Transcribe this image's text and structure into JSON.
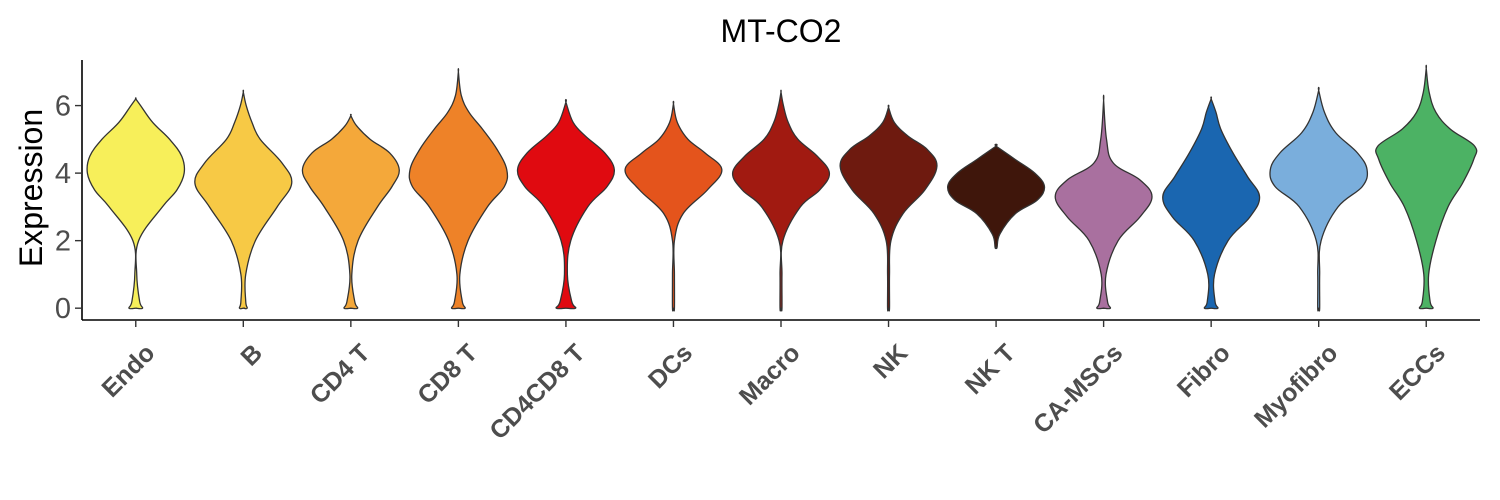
{
  "chart_data": {
    "type": "violin",
    "title": "MT-CO2",
    "xlabel": "",
    "ylabel": "Expression",
    "ylim": [
      -0.35,
      7.35
    ],
    "yticks": [
      0,
      2,
      4,
      6
    ],
    "grid": false,
    "legend": "none",
    "categories": [
      "Endo",
      "B",
      "CD4 T",
      "CD8 T",
      "CD4CD8 T",
      "DCs",
      "Macro",
      "NK",
      "NK T",
      "CA-MSCs",
      "Fibro",
      "Myofibro",
      "ECCs"
    ],
    "colors": [
      "#F7EF5A",
      "#F7C945",
      "#F4A83A",
      "#EE8228",
      "#E00A10",
      "#E4541C",
      "#A11A11",
      "#6E1A0F",
      "#3F160B",
      "#A9709F",
      "#1A66B0",
      "#7AAEDC",
      "#4CB264"
    ],
    "series": [
      {
        "category": "Endo",
        "min": 0,
        "max": 6.2,
        "profile": [
          [
            0,
            0.14
          ],
          [
            0.2,
            0.08
          ],
          [
            1,
            0.02
          ],
          [
            2,
            0.06
          ],
          [
            3,
            0.55
          ],
          [
            3.5,
            0.85
          ],
          [
            4,
            1.0
          ],
          [
            4.5,
            0.95
          ],
          [
            5,
            0.7
          ],
          [
            5.5,
            0.35
          ],
          [
            6,
            0.1
          ],
          [
            6.2,
            0
          ]
        ]
      },
      {
        "category": "B",
        "min": 0,
        "max": 6.4,
        "profile": [
          [
            0,
            0.08
          ],
          [
            0.2,
            0.05
          ],
          [
            1,
            0.05
          ],
          [
            2,
            0.25
          ],
          [
            3,
            0.7
          ],
          [
            3.7,
            1.0
          ],
          [
            4.3,
            0.8
          ],
          [
            5,
            0.35
          ],
          [
            5.5,
            0.18
          ],
          [
            6,
            0.06
          ],
          [
            6.4,
            0
          ]
        ]
      },
      {
        "category": "CD4 T",
        "min": 0,
        "max": 5.7,
        "profile": [
          [
            0,
            0.14
          ],
          [
            0.2,
            0.08
          ],
          [
            1,
            0.02
          ],
          [
            2,
            0.15
          ],
          [
            3,
            0.55
          ],
          [
            3.6,
            0.85
          ],
          [
            4.1,
            1.0
          ],
          [
            4.6,
            0.8
          ],
          [
            5,
            0.4
          ],
          [
            5.4,
            0.12
          ],
          [
            5.7,
            0
          ]
        ]
      },
      {
        "category": "CD8 T",
        "min": 0,
        "max": 7.0,
        "profile": [
          [
            0,
            0.14
          ],
          [
            0.2,
            0.08
          ],
          [
            1,
            0.03
          ],
          [
            2,
            0.2
          ],
          [
            3,
            0.6
          ],
          [
            3.6,
            0.95
          ],
          [
            4.1,
            1.0
          ],
          [
            4.7,
            0.8
          ],
          [
            5.3,
            0.5
          ],
          [
            5.8,
            0.22
          ],
          [
            6.3,
            0.06
          ],
          [
            7,
            0
          ]
        ]
      },
      {
        "category": "CD4CD8 T",
        "min": 0,
        "max": 6.1,
        "profile": [
          [
            0,
            0.2
          ],
          [
            0.2,
            0.12
          ],
          [
            1,
            0.03
          ],
          [
            2,
            0.1
          ],
          [
            3,
            0.45
          ],
          [
            3.6,
            0.85
          ],
          [
            4.1,
            1.0
          ],
          [
            4.6,
            0.8
          ],
          [
            5.1,
            0.4
          ],
          [
            5.5,
            0.15
          ],
          [
            6.1,
            0
          ]
        ]
      },
      {
        "category": "DCs",
        "min": 0,
        "max": 6.05,
        "profile": [
          [
            0,
            0.02
          ],
          [
            1,
            0.02
          ],
          [
            2,
            0.02
          ],
          [
            2.8,
            0.2
          ],
          [
            3.5,
            0.7
          ],
          [
            4.1,
            1.0
          ],
          [
            4.6,
            0.65
          ],
          [
            5,
            0.3
          ],
          [
            5.5,
            0.08
          ],
          [
            6.05,
            0
          ]
        ]
      },
      {
        "category": "Macro",
        "min": 0,
        "max": 6.4,
        "profile": [
          [
            0,
            0.02
          ],
          [
            1,
            0.02
          ],
          [
            2,
            0.04
          ],
          [
            3,
            0.4
          ],
          [
            3.5,
            0.8
          ],
          [
            4,
            1.0
          ],
          [
            4.5,
            0.75
          ],
          [
            5,
            0.35
          ],
          [
            5.5,
            0.15
          ],
          [
            6,
            0.05
          ],
          [
            6.4,
            0
          ]
        ]
      },
      {
        "category": "NK",
        "min": 0,
        "max": 5.95,
        "profile": [
          [
            0,
            0.02
          ],
          [
            1,
            0.02
          ],
          [
            2,
            0.05
          ],
          [
            2.8,
            0.3
          ],
          [
            3.5,
            0.75
          ],
          [
            4.2,
            1.0
          ],
          [
            4.7,
            0.8
          ],
          [
            5.1,
            0.4
          ],
          [
            5.5,
            0.12
          ],
          [
            5.95,
            0
          ]
        ]
      },
      {
        "category": "NK T",
        "min": 1.8,
        "max": 4.8,
        "profile": [
          [
            1.8,
            0.02
          ],
          [
            2.2,
            0.08
          ],
          [
            2.8,
            0.4
          ],
          [
            3.2,
            0.85
          ],
          [
            3.6,
            1.0
          ],
          [
            4,
            0.8
          ],
          [
            4.4,
            0.4
          ],
          [
            4.8,
            0
          ]
        ]
      },
      {
        "category": "CA-MSCs",
        "min": 0,
        "max": 6.15,
        "profile": [
          [
            0,
            0.14
          ],
          [
            0.2,
            0.08
          ],
          [
            1,
            0.05
          ],
          [
            2,
            0.3
          ],
          [
            2.7,
            0.75
          ],
          [
            3.3,
            1.0
          ],
          [
            3.8,
            0.75
          ],
          [
            4.3,
            0.2
          ],
          [
            5,
            0.06
          ],
          [
            6.15,
            0
          ]
        ]
      },
      {
        "category": "Fibro",
        "min": 0,
        "max": 6.2,
        "profile": [
          [
            0,
            0.14
          ],
          [
            0.2,
            0.08
          ],
          [
            1,
            0.07
          ],
          [
            2,
            0.35
          ],
          [
            2.7,
            0.8
          ],
          [
            3.3,
            1.0
          ],
          [
            3.9,
            0.75
          ],
          [
            4.6,
            0.45
          ],
          [
            5.3,
            0.2
          ],
          [
            5.8,
            0.1
          ],
          [
            6.2,
            0
          ]
        ]
      },
      {
        "category": "Myofibro",
        "min": 0,
        "max": 6.45,
        "profile": [
          [
            0,
            0.02
          ],
          [
            1,
            0.02
          ],
          [
            2,
            0.05
          ],
          [
            3,
            0.4
          ],
          [
            3.6,
            0.9
          ],
          [
            4.1,
            1.0
          ],
          [
            4.6,
            0.8
          ],
          [
            5.2,
            0.35
          ],
          [
            5.8,
            0.12
          ],
          [
            6.45,
            0
          ]
        ]
      },
      {
        "category": "ECCs",
        "min": 0,
        "max": 7.1,
        "profile": [
          [
            0,
            0.14
          ],
          [
            0.2,
            0.08
          ],
          [
            1,
            0.05
          ],
          [
            2,
            0.2
          ],
          [
            3,
            0.45
          ],
          [
            3.7,
            0.75
          ],
          [
            4.4,
            0.98
          ],
          [
            4.8,
            1.0
          ],
          [
            5.3,
            0.5
          ],
          [
            5.8,
            0.2
          ],
          [
            6.4,
            0.06
          ],
          [
            7.1,
            0
          ]
        ]
      }
    ]
  }
}
